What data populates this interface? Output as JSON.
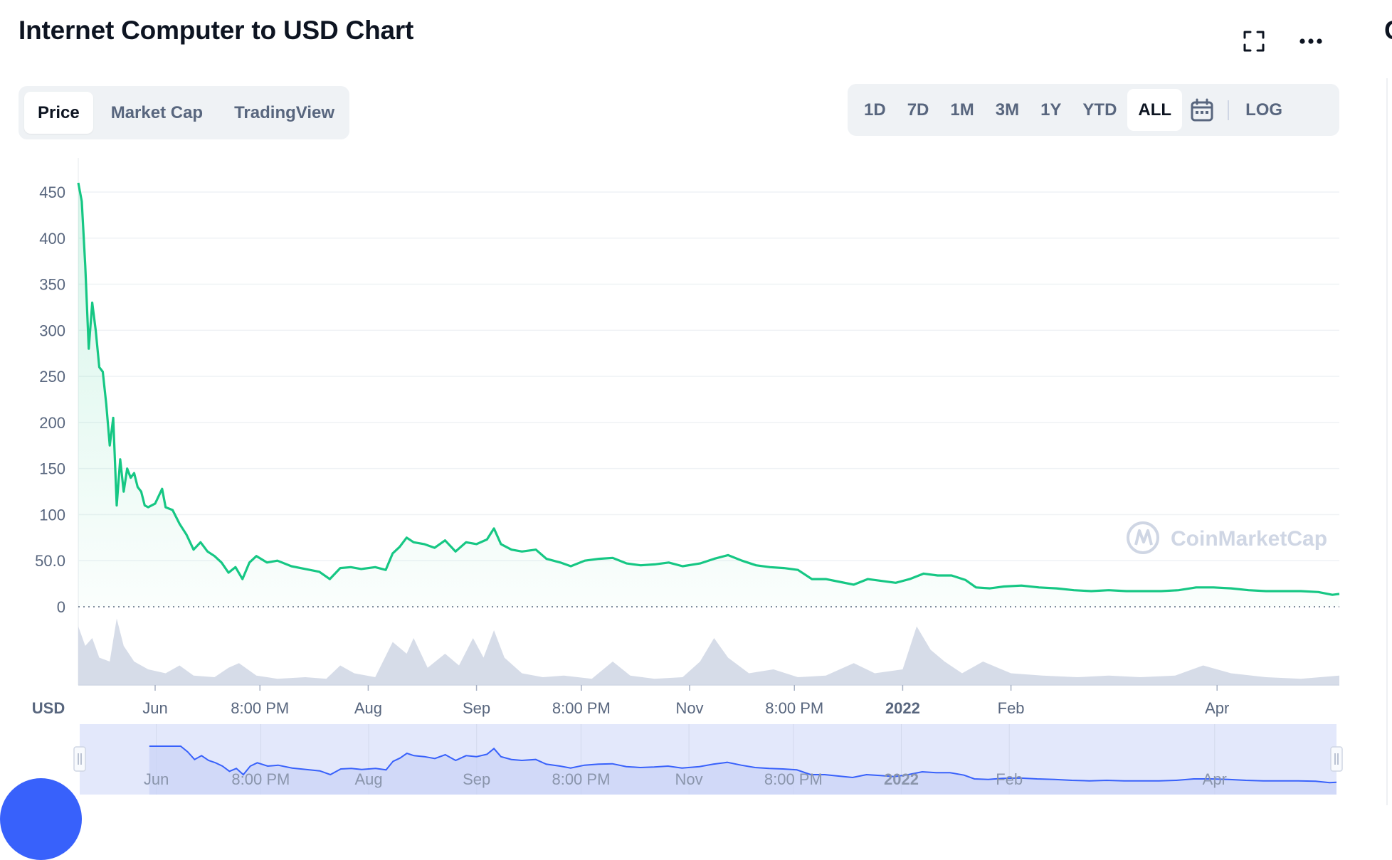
{
  "header": {
    "title": "Internet Computer to USD Chart",
    "cut_letter": "C"
  },
  "tabs": [
    {
      "label": "Price",
      "active": true
    },
    {
      "label": "Market Cap",
      "active": false
    },
    {
      "label": "TradingView",
      "active": false
    }
  ],
  "ranges": [
    {
      "label": "1D",
      "active": false
    },
    {
      "label": "7D",
      "active": false
    },
    {
      "label": "1M",
      "active": false
    },
    {
      "label": "3M",
      "active": false
    },
    {
      "label": "1Y",
      "active": false
    },
    {
      "label": "YTD",
      "active": false
    },
    {
      "label": "ALL",
      "active": true
    }
  ],
  "log_label": "LOG",
  "icons": {
    "fullscreen": "fullscreen-icon",
    "more": "more-icon",
    "calendar": "calendar-icon"
  },
  "colors": {
    "price_line": "#16c784",
    "volume": "#cfd6e4",
    "navigator_line": "#3861fb",
    "navigator_fill": "#e3e8fb",
    "grid": "#eff2f5",
    "axis_text": "#58667e"
  },
  "chart_data": {
    "type": "line",
    "title": "",
    "currency_label": "USD",
    "watermark": "CoinMarketCap",
    "ylim": [
      0,
      450
    ],
    "y_ticks": [
      "0",
      "50.0",
      "100",
      "150",
      "200",
      "250",
      "300",
      "350",
      "400",
      "450"
    ],
    "y_tick_values": [
      0,
      50,
      100,
      150,
      200,
      250,
      300,
      350,
      400,
      450
    ],
    "x_start": "2021-05-10",
    "x_end": "2022-05-06",
    "x_ticks": [
      {
        "label": "Jun",
        "date": "2021-06-01",
        "bold": false
      },
      {
        "label": "8:00 PM",
        "date": "2021-07-01",
        "bold": false
      },
      {
        "label": "Aug",
        "date": "2021-08-01",
        "bold": false
      },
      {
        "label": "Sep",
        "date": "2021-09-01",
        "bold": false
      },
      {
        "label": "8:00 PM",
        "date": "2021-10-01",
        "bold": false
      },
      {
        "label": "Nov",
        "date": "2021-11-01",
        "bold": false
      },
      {
        "label": "8:00 PM",
        "date": "2021-12-01",
        "bold": false
      },
      {
        "label": "2022",
        "date": "2022-01-01",
        "bold": true
      },
      {
        "label": "Feb",
        "date": "2022-02-01",
        "bold": false
      },
      {
        "label": "Apr",
        "date": "2022-04-01",
        "bold": false
      }
    ],
    "series": [
      {
        "type": "line",
        "points": [
          [
            "2021-05-10",
            460
          ],
          [
            "2021-05-11",
            440
          ],
          [
            "2021-05-12",
            370
          ],
          [
            "2021-05-13",
            280
          ],
          [
            "2021-05-14",
            330
          ],
          [
            "2021-05-15",
            300
          ],
          [
            "2021-05-16",
            260
          ],
          [
            "2021-05-17",
            255
          ],
          [
            "2021-05-18",
            220
          ],
          [
            "2021-05-19",
            175
          ],
          [
            "2021-05-20",
            205
          ],
          [
            "2021-05-21",
            110
          ],
          [
            "2021-05-22",
            160
          ],
          [
            "2021-05-23",
            125
          ],
          [
            "2021-05-24",
            150
          ],
          [
            "2021-05-25",
            140
          ],
          [
            "2021-05-26",
            145
          ],
          [
            "2021-05-27",
            130
          ],
          [
            "2021-05-28",
            125
          ],
          [
            "2021-05-29",
            110
          ],
          [
            "2021-05-30",
            108
          ],
          [
            "2021-06-01",
            112
          ],
          [
            "2021-06-03",
            128
          ],
          [
            "2021-06-04",
            108
          ],
          [
            "2021-06-06",
            105
          ],
          [
            "2021-06-08",
            90
          ],
          [
            "2021-06-10",
            78
          ],
          [
            "2021-06-12",
            62
          ],
          [
            "2021-06-14",
            70
          ],
          [
            "2021-06-16",
            60
          ],
          [
            "2021-06-18",
            55
          ],
          [
            "2021-06-20",
            48
          ],
          [
            "2021-06-22",
            37
          ],
          [
            "2021-06-24",
            43
          ],
          [
            "2021-06-26",
            30
          ],
          [
            "2021-06-28",
            48
          ],
          [
            "2021-06-30",
            55
          ],
          [
            "2021-07-03",
            48
          ],
          [
            "2021-07-06",
            50
          ],
          [
            "2021-07-10",
            44
          ],
          [
            "2021-07-14",
            41
          ],
          [
            "2021-07-18",
            38
          ],
          [
            "2021-07-21",
            30
          ],
          [
            "2021-07-24",
            42
          ],
          [
            "2021-07-27",
            43
          ],
          [
            "2021-07-30",
            41
          ],
          [
            "2021-08-03",
            43
          ],
          [
            "2021-08-06",
            40
          ],
          [
            "2021-08-08",
            58
          ],
          [
            "2021-08-10",
            65
          ],
          [
            "2021-08-12",
            75
          ],
          [
            "2021-08-14",
            70
          ],
          [
            "2021-08-17",
            68
          ],
          [
            "2021-08-20",
            64
          ],
          [
            "2021-08-23",
            72
          ],
          [
            "2021-08-26",
            60
          ],
          [
            "2021-08-29",
            70
          ],
          [
            "2021-09-01",
            68
          ],
          [
            "2021-09-04",
            73
          ],
          [
            "2021-09-06",
            85
          ],
          [
            "2021-09-08",
            68
          ],
          [
            "2021-09-11",
            62
          ],
          [
            "2021-09-14",
            60
          ],
          [
            "2021-09-18",
            62
          ],
          [
            "2021-09-21",
            52
          ],
          [
            "2021-09-25",
            48
          ],
          [
            "2021-09-28",
            44
          ],
          [
            "2021-10-02",
            50
          ],
          [
            "2021-10-06",
            52
          ],
          [
            "2021-10-10",
            53
          ],
          [
            "2021-10-14",
            47
          ],
          [
            "2021-10-18",
            45
          ],
          [
            "2021-10-22",
            46
          ],
          [
            "2021-10-26",
            48
          ],
          [
            "2021-10-30",
            44
          ],
          [
            "2021-11-04",
            47
          ],
          [
            "2021-11-08",
            52
          ],
          [
            "2021-11-12",
            56
          ],
          [
            "2021-11-16",
            50
          ],
          [
            "2021-11-20",
            45
          ],
          [
            "2021-11-24",
            43
          ],
          [
            "2021-11-28",
            42
          ],
          [
            "2021-12-02",
            40
          ],
          [
            "2021-12-06",
            30
          ],
          [
            "2021-12-10",
            30
          ],
          [
            "2021-12-14",
            27
          ],
          [
            "2021-12-18",
            24
          ],
          [
            "2021-12-22",
            30
          ],
          [
            "2021-12-26",
            28
          ],
          [
            "2021-12-30",
            26
          ],
          [
            "2022-01-03",
            30
          ],
          [
            "2022-01-07",
            36
          ],
          [
            "2022-01-11",
            34
          ],
          [
            "2022-01-15",
            34
          ],
          [
            "2022-01-19",
            29
          ],
          [
            "2022-01-22",
            21
          ],
          [
            "2022-01-26",
            20
          ],
          [
            "2022-01-30",
            22
          ],
          [
            "2022-02-04",
            23
          ],
          [
            "2022-02-09",
            21
          ],
          [
            "2022-02-14",
            20
          ],
          [
            "2022-02-19",
            18
          ],
          [
            "2022-02-24",
            17
          ],
          [
            "2022-03-01",
            18
          ],
          [
            "2022-03-06",
            17
          ],
          [
            "2022-03-11",
            17
          ],
          [
            "2022-03-16",
            17
          ],
          [
            "2022-03-21",
            18
          ],
          [
            "2022-03-26",
            21
          ],
          [
            "2022-03-31",
            21
          ],
          [
            "2022-04-05",
            20
          ],
          [
            "2022-04-10",
            18
          ],
          [
            "2022-04-15",
            17
          ],
          [
            "2022-04-20",
            17
          ],
          [
            "2022-04-25",
            17
          ],
          [
            "2022-04-30",
            16
          ],
          [
            "2022-05-04",
            13
          ],
          [
            "2022-05-06",
            14
          ]
        ]
      },
      {
        "type": "area",
        "points": [
          [
            "2021-05-10",
            0.75
          ],
          [
            "2021-05-12",
            0.5
          ],
          [
            "2021-05-14",
            0.6
          ],
          [
            "2021-05-16",
            0.35
          ],
          [
            "2021-05-19",
            0.3
          ],
          [
            "2021-05-21",
            0.85
          ],
          [
            "2021-05-23",
            0.5
          ],
          [
            "2021-05-26",
            0.3
          ],
          [
            "2021-05-30",
            0.2
          ],
          [
            "2021-06-04",
            0.15
          ],
          [
            "2021-06-08",
            0.25
          ],
          [
            "2021-06-12",
            0.12
          ],
          [
            "2021-06-18",
            0.1
          ],
          [
            "2021-06-22",
            0.22
          ],
          [
            "2021-06-25",
            0.28
          ],
          [
            "2021-06-30",
            0.12
          ],
          [
            "2021-07-06",
            0.08
          ],
          [
            "2021-07-14",
            0.1
          ],
          [
            "2021-07-20",
            0.08
          ],
          [
            "2021-07-24",
            0.25
          ],
          [
            "2021-07-28",
            0.15
          ],
          [
            "2021-08-03",
            0.1
          ],
          [
            "2021-08-08",
            0.55
          ],
          [
            "2021-08-12",
            0.4
          ],
          [
            "2021-08-14",
            0.6
          ],
          [
            "2021-08-18",
            0.22
          ],
          [
            "2021-08-23",
            0.4
          ],
          [
            "2021-08-27",
            0.25
          ],
          [
            "2021-08-31",
            0.6
          ],
          [
            "2021-09-03",
            0.35
          ],
          [
            "2021-09-06",
            0.7
          ],
          [
            "2021-09-09",
            0.35
          ],
          [
            "2021-09-14",
            0.15
          ],
          [
            "2021-09-20",
            0.1
          ],
          [
            "2021-09-26",
            0.12
          ],
          [
            "2021-10-04",
            0.08
          ],
          [
            "2021-10-10",
            0.3
          ],
          [
            "2021-10-15",
            0.12
          ],
          [
            "2021-10-22",
            0.08
          ],
          [
            "2021-10-30",
            0.1
          ],
          [
            "2021-11-04",
            0.3
          ],
          [
            "2021-11-08",
            0.6
          ],
          [
            "2021-11-12",
            0.35
          ],
          [
            "2021-11-18",
            0.15
          ],
          [
            "2021-11-25",
            0.2
          ],
          [
            "2021-12-02",
            0.1
          ],
          [
            "2021-12-10",
            0.12
          ],
          [
            "2021-12-18",
            0.28
          ],
          [
            "2021-12-24",
            0.15
          ],
          [
            "2022-01-01",
            0.2
          ],
          [
            "2022-01-05",
            0.75
          ],
          [
            "2022-01-09",
            0.45
          ],
          [
            "2022-01-13",
            0.3
          ],
          [
            "2022-01-18",
            0.15
          ],
          [
            "2022-01-24",
            0.3
          ],
          [
            "2022-02-01",
            0.15
          ],
          [
            "2022-02-10",
            0.12
          ],
          [
            "2022-02-20",
            0.1
          ],
          [
            "2022-03-01",
            0.12
          ],
          [
            "2022-03-10",
            0.1
          ],
          [
            "2022-03-20",
            0.12
          ],
          [
            "2022-03-28",
            0.25
          ],
          [
            "2022-04-05",
            0.15
          ],
          [
            "2022-04-15",
            0.1
          ],
          [
            "2022-04-25",
            0.08
          ],
          [
            "2022-05-06",
            0.12
          ]
        ]
      }
    ],
    "navigator_range": [
      "2021-05-10",
      "2022-05-06"
    ],
    "navigator_ticks": [
      {
        "label": "Jun",
        "date": "2021-06-01",
        "bold": false
      },
      {
        "label": "8:00 PM",
        "date": "2021-07-01",
        "bold": false
      },
      {
        "label": "Aug",
        "date": "2021-08-01",
        "bold": false
      },
      {
        "label": "Sep",
        "date": "2021-09-01",
        "bold": false
      },
      {
        "label": "8:00 PM",
        "date": "2021-10-01",
        "bold": false
      },
      {
        "label": "Nov",
        "date": "2021-11-01",
        "bold": false
      },
      {
        "label": "8:00 PM",
        "date": "2021-12-01",
        "bold": false
      },
      {
        "label": "2022",
        "date": "2022-01-01",
        "bold": true
      },
      {
        "label": "Feb",
        "date": "2022-02-01",
        "bold": false
      },
      {
        "label": "Apr",
        "date": "2022-04-01",
        "bold": false
      }
    ]
  }
}
